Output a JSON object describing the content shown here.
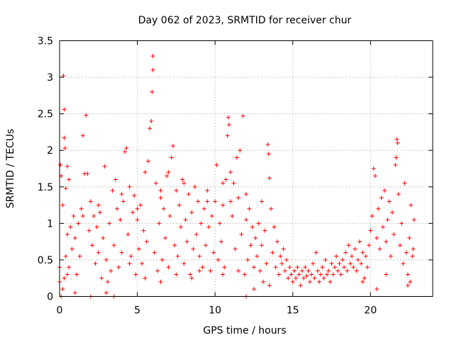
{
  "chart_data": {
    "type": "scatter",
    "title": "Day 062 of 2023, SRMTID for receiver chur",
    "xlabel": "GPS time / hours",
    "ylabel": "SRMTID / TECUs",
    "xlim": [
      0,
      24
    ],
    "ylim": [
      0,
      3.5
    ],
    "x_ticks": [
      0,
      5,
      10,
      15,
      20
    ],
    "x_tick_labels": [
      "0",
      "5",
      "10",
      "15",
      "20"
    ],
    "y_ticks": [
      0,
      0.5,
      1,
      1.5,
      2,
      2.5,
      3,
      3.5
    ],
    "y_tick_labels": [
      "0",
      "0.5",
      "1",
      "1.5",
      "2",
      "2.5",
      "3",
      "3.5"
    ],
    "grid": true,
    "marker": "+",
    "series": [
      {
        "name": "SRMTID",
        "color": "#ff0000",
        "points": [
          [
            0.05,
            1.8
          ],
          [
            0.1,
            1.65
          ],
          [
            0.2,
            1.25
          ],
          [
            0.25,
            3.02
          ],
          [
            0.3,
            2.56
          ],
          [
            0.3,
            2.17
          ],
          [
            0.35,
            2.03
          ],
          [
            0.4,
            1.48
          ],
          [
            0.5,
            1.78
          ],
          [
            0.6,
            1.6
          ],
          [
            0.2,
            0.1
          ],
          [
            0.3,
            0.25
          ],
          [
            0.4,
            0.55
          ],
          [
            0.5,
            0.85
          ],
          [
            0.6,
            0.4
          ],
          [
            0.7,
            0.95
          ],
          [
            0.8,
            0.65
          ],
          [
            0.9,
            1.1
          ],
          [
            1.0,
            0.8
          ],
          [
            1.1,
            0.3
          ],
          [
            1.2,
            1.0
          ],
          [
            1.3,
            0.55
          ],
          [
            1.4,
            1.2
          ],
          [
            1.5,
            2.2
          ],
          [
            1.6,
            1.68
          ],
          [
            1.7,
            2.48
          ],
          [
            1.8,
            1.68
          ],
          [
            1.9,
            0.9
          ],
          [
            2.0,
            1.3
          ],
          [
            2.1,
            0.7
          ],
          [
            2.2,
            1.1
          ],
          [
            2.3,
            0.45
          ],
          [
            2.4,
            0.95
          ],
          [
            2.5,
            0.6
          ],
          [
            2.6,
            1.15
          ],
          [
            2.7,
            0.25
          ],
          [
            2.8,
            0.8
          ],
          [
            2.9,
            1.78
          ],
          [
            3.0,
            0.5
          ],
          [
            3.1,
            0.2
          ],
          [
            3.2,
            1.0
          ],
          [
            3.3,
            0.35
          ],
          [
            3.4,
            1.45
          ],
          [
            3.5,
            0.7
          ],
          [
            3.6,
            1.6
          ],
          [
            3.7,
            1.2
          ],
          [
            3.8,
            0.4
          ],
          [
            3.9,
            1.05
          ],
          [
            4.0,
            0.6
          ],
          [
            4.1,
            1.3
          ],
          [
            4.2,
            1.98
          ],
          [
            4.3,
            2.03
          ],
          [
            4.4,
            0.85
          ],
          [
            4.5,
            1.5
          ],
          [
            4.6,
            0.55
          ],
          [
            4.7,
            1.15
          ],
          [
            4.8,
            1.38
          ],
          [
            4.9,
            0.3
          ],
          [
            5.0,
            1.05
          ],
          [
            5.1,
            0.65
          ],
          [
            5.2,
            1.25
          ],
          [
            5.3,
            0.45
          ],
          [
            5.4,
            0.9
          ],
          [
            5.5,
            1.7
          ],
          [
            5.6,
            0.75
          ],
          [
            5.7,
            1.85
          ],
          [
            5.8,
            2.3
          ],
          [
            5.9,
            2.4
          ],
          [
            5.95,
            2.8
          ],
          [
            6.0,
            3.1
          ],
          [
            6.0,
            3.29
          ],
          [
            6.1,
            0.6
          ],
          [
            6.2,
            1.55
          ],
          [
            6.3,
            0.35
          ],
          [
            6.4,
            1.0
          ],
          [
            6.5,
            1.35
          ],
          [
            6.6,
            0.5
          ],
          [
            6.7,
            1.2
          ],
          [
            6.8,
            0.8
          ],
          [
            6.9,
            1.65
          ],
          [
            7.0,
            0.4
          ],
          [
            7.1,
            1.1
          ],
          [
            7.2,
            1.9
          ],
          [
            7.3,
            2.06
          ],
          [
            7.4,
            0.7
          ],
          [
            7.5,
            1.45
          ],
          [
            7.6,
            0.55
          ],
          [
            7.7,
            1.25
          ],
          [
            7.8,
            0.95
          ],
          [
            7.9,
            1.6
          ],
          [
            8.0,
            0.45
          ],
          [
            8.1,
            1.05
          ],
          [
            8.2,
            0.75
          ],
          [
            8.3,
            1.4
          ],
          [
            8.4,
            0.3
          ],
          [
            8.5,
            1.15
          ],
          [
            8.6,
            0.65
          ],
          [
            8.7,
            1.5
          ],
          [
            8.8,
            0.85
          ],
          [
            8.9,
            1.3
          ],
          [
            9.0,
            0.55
          ],
          [
            9.1,
            1.0
          ],
          [
            9.2,
            0.4
          ],
          [
            9.3,
            1.2
          ],
          [
            9.4,
            0.7
          ],
          [
            9.5,
            1.45
          ],
          [
            9.6,
            0.95
          ],
          [
            9.7,
            0.35
          ],
          [
            9.8,
            1.1
          ],
          [
            9.9,
            0.6
          ],
          [
            10.0,
            1.3
          ],
          [
            10.1,
            1.8
          ],
          [
            10.2,
            0.5
          ],
          [
            10.3,
            1.0
          ],
          [
            10.4,
            0.75
          ],
          [
            10.5,
            1.25
          ],
          [
            10.6,
            0.4
          ],
          [
            10.7,
            1.6
          ],
          [
            10.8,
            2.2
          ],
          [
            10.85,
            2.45
          ],
          [
            10.9,
            2.35
          ],
          [
            11.0,
            1.7
          ],
          [
            11.1,
            1.1
          ],
          [
            11.2,
            1.55
          ],
          [
            11.3,
            0.65
          ],
          [
            11.4,
            1.9
          ],
          [
            11.5,
            1.35
          ],
          [
            11.6,
            2.0
          ],
          [
            11.7,
            0.85
          ],
          [
            11.8,
            2.47
          ],
          [
            11.9,
            0.3
          ],
          [
            12.0,
            1.05
          ],
          [
            12.1,
            0.5
          ],
          [
            12.2,
            1.2
          ],
          [
            12.3,
            0.7
          ],
          [
            12.4,
            0.95
          ],
          [
            12.5,
            0.4
          ],
          [
            12.6,
            0.8
          ],
          [
            12.7,
            0.55
          ],
          [
            12.8,
            1.0
          ],
          [
            12.9,
            0.35
          ],
          [
            13.0,
            0.7
          ],
          [
            13.1,
            0.2
          ],
          [
            13.2,
            0.9
          ],
          [
            13.3,
            0.45
          ],
          [
            13.4,
            2.08
          ],
          [
            13.45,
            1.95
          ],
          [
            13.5,
            1.62
          ],
          [
            13.6,
            1.2
          ],
          [
            13.7,
            0.6
          ],
          [
            13.8,
            0.95
          ],
          [
            13.9,
            0.4
          ],
          [
            14.0,
            0.75
          ],
          [
            14.1,
            0.3
          ],
          [
            14.2,
            0.55
          ],
          [
            14.3,
            0.45
          ],
          [
            14.4,
            0.65
          ],
          [
            14.5,
            0.35
          ],
          [
            14.6,
            0.5
          ],
          [
            14.7,
            0.25
          ],
          [
            14.8,
            0.4
          ],
          [
            14.9,
            0.3
          ],
          [
            15.0,
            0.2
          ],
          [
            15.1,
            0.35
          ],
          [
            15.2,
            0.25
          ],
          [
            15.3,
            0.4
          ],
          [
            15.4,
            0.3
          ],
          [
            15.5,
            0.15
          ],
          [
            15.6,
            0.35
          ],
          [
            15.7,
            0.25
          ],
          [
            15.8,
            0.4
          ],
          [
            15.9,
            0.28
          ],
          [
            16.0,
            0.35
          ],
          [
            16.1,
            0.2
          ],
          [
            16.2,
            0.3
          ],
          [
            16.3,
            0.45
          ],
          [
            16.4,
            0.25
          ],
          [
            16.5,
            0.6
          ],
          [
            16.6,
            0.35
          ],
          [
            16.7,
            0.2
          ],
          [
            16.8,
            0.3
          ],
          [
            16.9,
            0.4
          ],
          [
            17.0,
            0.25
          ],
          [
            17.1,
            0.5
          ],
          [
            17.2,
            0.3
          ],
          [
            17.3,
            0.35
          ],
          [
            17.4,
            0.2
          ],
          [
            17.5,
            0.45
          ],
          [
            17.6,
            0.3
          ],
          [
            17.7,
            0.4
          ],
          [
            17.8,
            0.55
          ],
          [
            17.9,
            0.35
          ],
          [
            18.0,
            0.45
          ],
          [
            18.1,
            0.3
          ],
          [
            18.2,
            0.5
          ],
          [
            18.3,
            0.4
          ],
          [
            18.4,
            0.6
          ],
          [
            18.5,
            0.35
          ],
          [
            18.6,
            0.7
          ],
          [
            18.7,
            0.45
          ],
          [
            18.8,
            0.55
          ],
          [
            18.9,
            0.4
          ],
          [
            19.0,
            0.65
          ],
          [
            19.1,
            0.35
          ],
          [
            19.2,
            0.5
          ],
          [
            19.3,
            0.75
          ],
          [
            19.4,
            0.45
          ],
          [
            19.5,
            0.6
          ],
          [
            19.6,
            0.25
          ],
          [
            19.7,
            0.55
          ],
          [
            19.8,
            0.4
          ],
          [
            19.9,
            0.7
          ],
          [
            20.0,
            0.9
          ],
          [
            20.1,
            1.1
          ],
          [
            20.2,
            1.75
          ],
          [
            20.3,
            1.65
          ],
          [
            20.4,
            0.8
          ],
          [
            20.5,
            1.2
          ],
          [
            20.6,
            0.65
          ],
          [
            20.7,
            1.35
          ],
          [
            20.8,
            0.95
          ],
          [
            20.9,
            1.45
          ],
          [
            21.0,
            0.75
          ],
          [
            21.1,
            1.05
          ],
          [
            21.2,
            1.3
          ],
          [
            21.3,
            0.55
          ],
          [
            21.4,
            1.15
          ],
          [
            21.5,
            0.85
          ],
          [
            21.6,
            1.8
          ],
          [
            21.65,
            1.9
          ],
          [
            21.7,
            2.15
          ],
          [
            21.75,
            2.1
          ],
          [
            21.8,
            1.4
          ],
          [
            21.9,
            0.7
          ],
          [
            22.0,
            1.0
          ],
          [
            22.1,
            0.45
          ],
          [
            22.2,
            1.55
          ],
          [
            22.3,
            0.6
          ],
          [
            22.4,
            0.3
          ],
          [
            22.5,
            0.8
          ],
          [
            22.55,
            0.2
          ],
          [
            22.6,
            1.25
          ],
          [
            22.7,
            0.55
          ],
          [
            22.75,
            0.65
          ],
          [
            22.8,
            1.05
          ],
          [
            20.4,
            0.1
          ],
          [
            21.0,
            0.3
          ],
          [
            22.4,
            0.15
          ],
          [
            19.5,
            0.2
          ],
          [
            12.0,
            0.0
          ],
          [
            0.5,
            0.3
          ],
          [
            1.0,
            0.05
          ],
          [
            2.0,
            0.0
          ],
          [
            3.0,
            0.05
          ],
          [
            3.5,
            0.0
          ],
          [
            4.5,
            0.45
          ],
          [
            5.5,
            0.25
          ],
          [
            6.5,
            0.2
          ],
          [
            7.5,
            0.3
          ],
          [
            8.5,
            0.25
          ],
          [
            9.0,
            0.35
          ],
          [
            10.5,
            0.3
          ],
          [
            11.5,
            0.35
          ],
          [
            12.5,
            0.1
          ],
          [
            13.5,
            0.15
          ],
          [
            0.0,
            0.4
          ],
          [
            0.0,
            0.2
          ],
          [
            0.1,
            0.0
          ],
          [
            1.5,
            1.1
          ],
          [
            2.5,
            1.25
          ],
          [
            4.0,
            1.4
          ],
          [
            5.0,
            1.2
          ],
          [
            6.5,
            1.45
          ],
          [
            7.0,
            1.7
          ],
          [
            8.0,
            1.55
          ],
          [
            9.5,
            1.3
          ],
          [
            10.5,
            1.55
          ],
          [
            11.0,
            1.3
          ],
          [
            12.0,
            1.4
          ],
          [
            13.0,
            1.3
          ]
        ]
      }
    ]
  }
}
